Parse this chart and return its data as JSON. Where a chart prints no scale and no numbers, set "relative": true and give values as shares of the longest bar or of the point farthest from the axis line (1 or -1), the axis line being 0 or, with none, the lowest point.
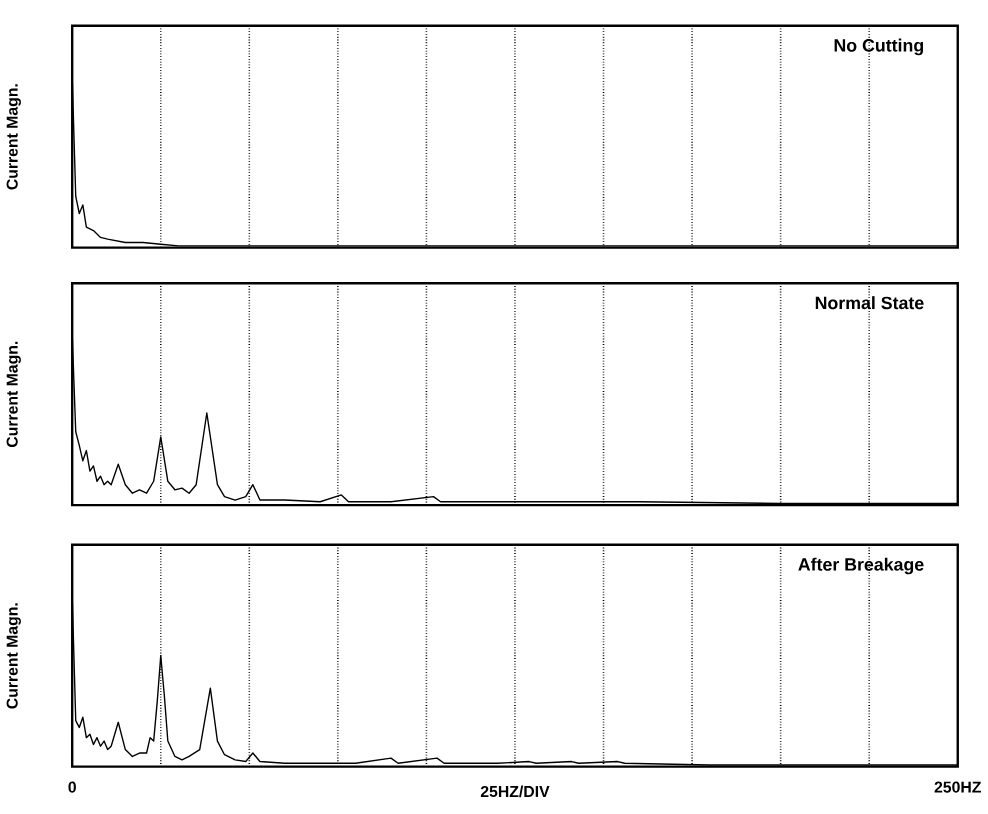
{
  "chart_data": [
    {
      "type": "line",
      "title": "No Cutting",
      "ylabel": "Current Magn.",
      "relative": true,
      "color": "#000000",
      "grid": "x",
      "tick_labels": false,
      "x": [
        0,
        1,
        2,
        3,
        4,
        6,
        8,
        10,
        15,
        20,
        25,
        30,
        50,
        100,
        150,
        200,
        250
      ],
      "values": [
        1.0,
        0.3,
        0.2,
        0.25,
        0.12,
        0.1,
        0.06,
        0.05,
        0.03,
        0.03,
        0.02,
        0.01,
        0.01,
        0.01,
        0.01,
        0.01,
        0.01
      ],
      "xlim": [
        0,
        250
      ],
      "xticks": [
        {
          "value": 0,
          "label": null
        },
        {
          "value": 25,
          "label": null
        },
        {
          "value": 50,
          "label": null
        },
        {
          "value": 75,
          "label": null
        },
        {
          "value": 100,
          "label": null
        },
        {
          "value": 125,
          "label": null
        },
        {
          "value": 150,
          "label": null
        },
        {
          "value": 175,
          "label": null
        },
        {
          "value": 200,
          "label": null
        },
        {
          "value": 225,
          "label": null
        },
        {
          "value": 250,
          "label": null
        }
      ]
    },
    {
      "type": "line",
      "title": "Normal State",
      "ylabel": "Current Magn.",
      "relative": true,
      "color": "#000000",
      "grid": "x",
      "tick_labels": false,
      "x": [
        0,
        1,
        2,
        3,
        4,
        5,
        6,
        7,
        8,
        9,
        10,
        11,
        13,
        15,
        17,
        19,
        21,
        23,
        25,
        27,
        29,
        31,
        33,
        35,
        38,
        41,
        43,
        46,
        49,
        51,
        53,
        60,
        70,
        76,
        78,
        90,
        102,
        104,
        130,
        160,
        200,
        250
      ],
      "values": [
        1.0,
        0.43,
        0.35,
        0.26,
        0.32,
        0.2,
        0.23,
        0.14,
        0.17,
        0.12,
        0.14,
        0.12,
        0.24,
        0.12,
        0.07,
        0.09,
        0.07,
        0.14,
        0.4,
        0.14,
        0.09,
        0.1,
        0.07,
        0.12,
        0.54,
        0.12,
        0.05,
        0.03,
        0.05,
        0.12,
        0.03,
        0.03,
        0.02,
        0.06,
        0.02,
        0.02,
        0.05,
        0.02,
        0.02,
        0.02,
        0.01,
        0.01
      ],
      "xlim": [
        0,
        250
      ],
      "xticks": [
        {
          "value": 0,
          "label": null
        },
        {
          "value": 25,
          "label": null
        },
        {
          "value": 50,
          "label": null
        },
        {
          "value": 75,
          "label": null
        },
        {
          "value": 100,
          "label": null
        },
        {
          "value": 125,
          "label": null
        },
        {
          "value": 150,
          "label": null
        },
        {
          "value": 175,
          "label": null
        },
        {
          "value": 200,
          "label": null
        },
        {
          "value": 225,
          "label": null
        },
        {
          "value": 250,
          "label": null
        }
      ]
    },
    {
      "type": "line",
      "title": "After Breakage",
      "ylabel": "Current Magn.",
      "relative": true,
      "color": "#000000",
      "grid": "x",
      "tick_labels": "x",
      "x": [
        0,
        1,
        2,
        3,
        4,
        5,
        6,
        7,
        8,
        9,
        10,
        11,
        13,
        15,
        17,
        19,
        21,
        22,
        23,
        24,
        25,
        26,
        27,
        29,
        31,
        33,
        36,
        39,
        41,
        43,
        46,
        49,
        51,
        53,
        60,
        70,
        80,
        90,
        92,
        103,
        105,
        120,
        129,
        131,
        141,
        143,
        154,
        156,
        180,
        200,
        250
      ],
      "values": [
        1.0,
        0.27,
        0.23,
        0.29,
        0.17,
        0.19,
        0.13,
        0.17,
        0.12,
        0.15,
        0.1,
        0.12,
        0.26,
        0.1,
        0.06,
        0.08,
        0.08,
        0.17,
        0.15,
        0.38,
        0.65,
        0.42,
        0.15,
        0.06,
        0.04,
        0.06,
        0.1,
        0.46,
        0.15,
        0.07,
        0.04,
        0.03,
        0.08,
        0.03,
        0.02,
        0.02,
        0.02,
        0.05,
        0.02,
        0.05,
        0.02,
        0.02,
        0.03,
        0.02,
        0.03,
        0.02,
        0.03,
        0.02,
        0.01,
        0.01,
        0.01
      ],
      "xlim": [
        0,
        250
      ],
      "xticks": [
        0,
        {
          "value": 25,
          "label": null
        },
        {
          "value": 50,
          "label": null
        },
        {
          "value": 75,
          "label": null
        },
        {
          "value": 100,
          "label": null
        },
        {
          "value": 125,
          "label": null
        },
        {
          "value": 150,
          "label": null
        },
        {
          "value": 175,
          "label": null
        },
        {
          "value": 200,
          "label": null
        },
        {
          "value": 225,
          "label": null
        },
        {
          "value": 250,
          "label": "250HZ"
        }
      ],
      "xlabel": "25HZ/DIV"
    }
  ]
}
